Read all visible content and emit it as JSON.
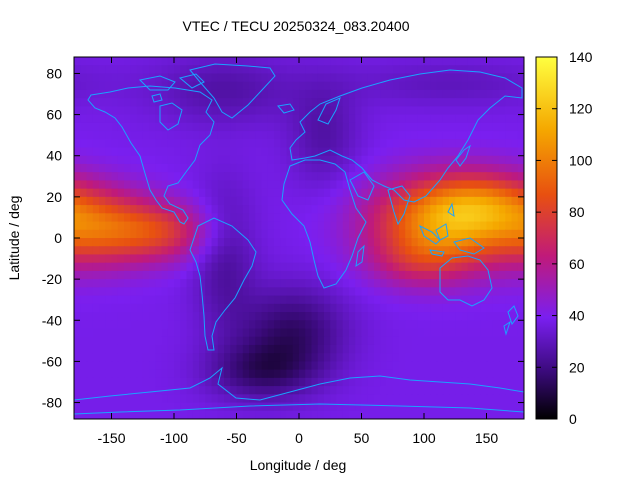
{
  "chart_data": {
    "type": "heatmap",
    "title": "VTEC / TECU 20250324_083.20400",
    "xlabel": "Longitude / deg",
    "ylabel": "Latitude / deg",
    "xlim": [
      -180,
      180
    ],
    "ylim": [
      -88,
      88
    ],
    "xticks": [
      -150,
      -100,
      -50,
      0,
      50,
      100,
      150
    ],
    "yticks": [
      -80,
      -60,
      -40,
      -20,
      0,
      20,
      40,
      60,
      80
    ],
    "colorbar": {
      "range": [
        0,
        140
      ],
      "ticks": [
        0,
        20,
        40,
        60,
        80,
        100,
        120,
        140
      ],
      "colors": [
        "#000000",
        "#3a0a7a",
        "#7a1ff0",
        "#c01a7a",
        "#e85010",
        "#f5a800",
        "#ffff40"
      ]
    },
    "blobs": [
      {
        "lon": 120,
        "lat": 8,
        "sx": 42,
        "sy": 15,
        "amp": 72
      },
      {
        "lon": 150,
        "lat": 18,
        "sx": 30,
        "sy": 10,
        "amp": 22
      },
      {
        "lon": 95,
        "lat": -12,
        "sx": 28,
        "sy": 9,
        "amp": 18
      },
      {
        "lon": -160,
        "lat": 5,
        "sx": 30,
        "sy": 13,
        "amp": 42
      },
      {
        "lon": -110,
        "lat": 3,
        "sx": 28,
        "sy": 10,
        "amp": 35
      },
      {
        "lon": -5,
        "lat": -45,
        "sx": 30,
        "sy": 15,
        "amp": -22
      },
      {
        "lon": -30,
        "lat": -65,
        "sx": 30,
        "sy": 10,
        "amp": -20
      },
      {
        "lon": -60,
        "lat": -10,
        "sx": 18,
        "sy": 25,
        "amp": -14
      },
      {
        "lon": 20,
        "lat": 50,
        "sx": 20,
        "sy": 18,
        "amp": -12
      },
      {
        "lon": -60,
        "lat": 72,
        "sx": 40,
        "sy": 12,
        "amp": -12
      },
      {
        "lon": 120,
        "lat": 75,
        "sx": 60,
        "sy": 8,
        "amp": -8
      }
    ]
  }
}
